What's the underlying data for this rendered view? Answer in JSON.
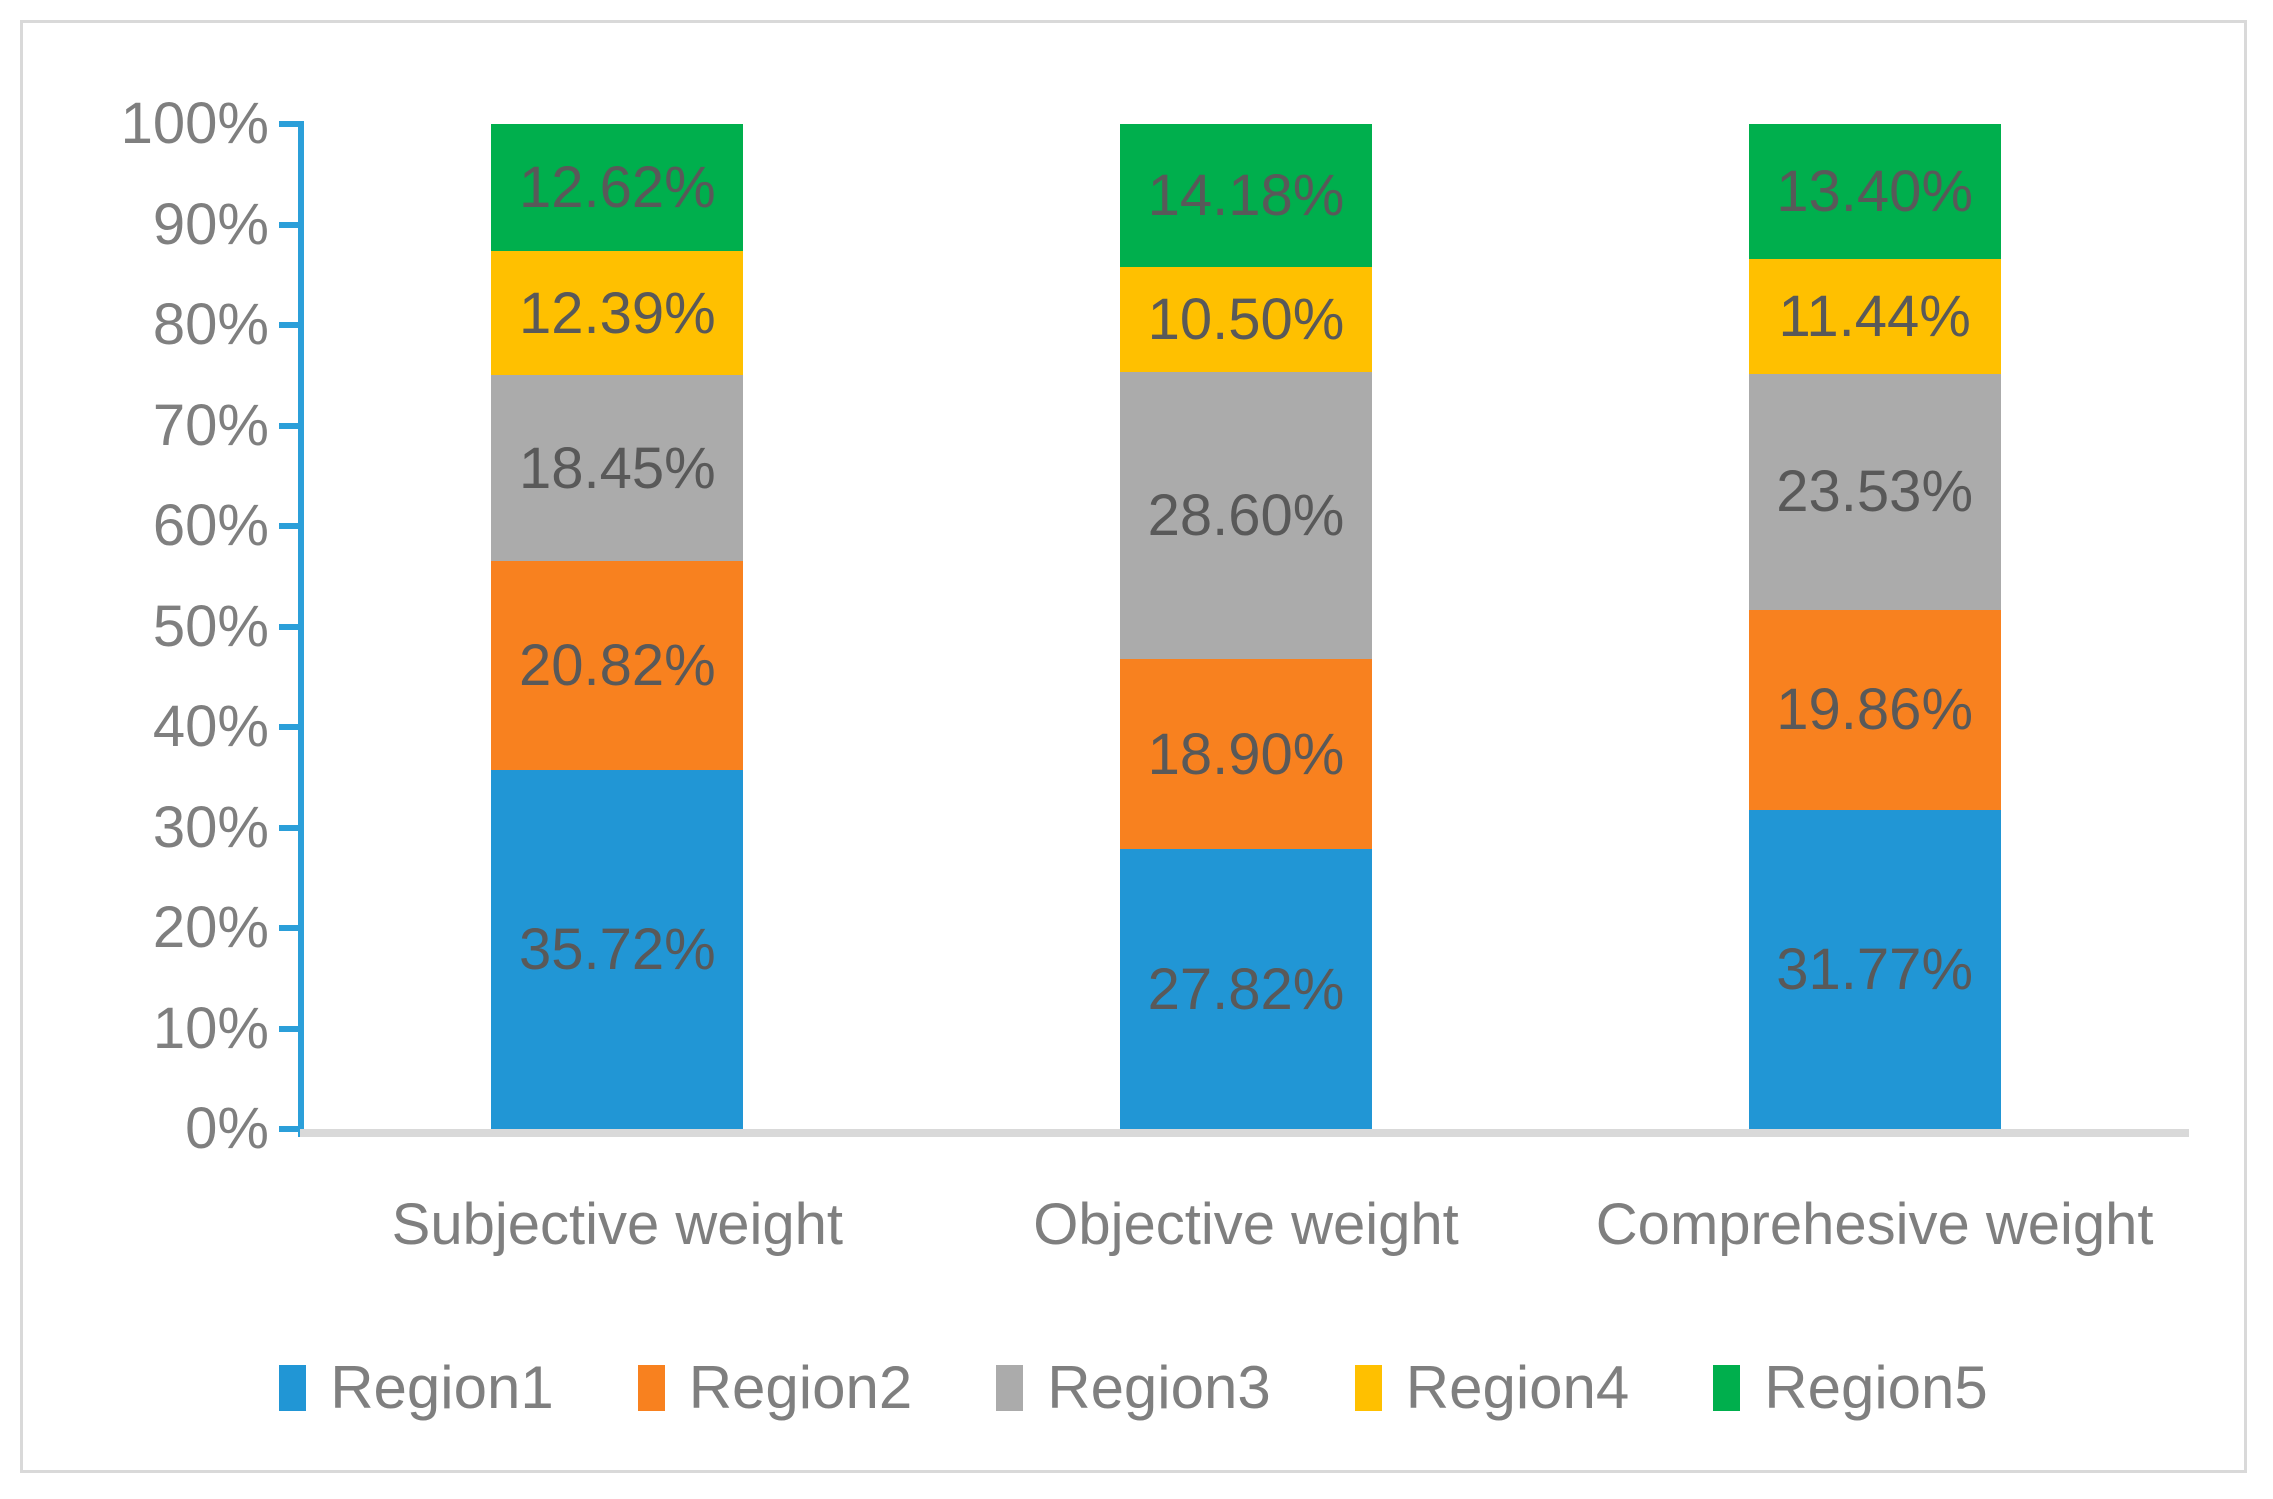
{
  "chart_data": {
    "type": "bar",
    "subtype": "stacked-100-percent-column",
    "title": "",
    "categories": [
      "Subjective weight",
      "Objective weight",
      "Comprehesive weight"
    ],
    "series": [
      {
        "name": "Region1",
        "color": "#2196D5",
        "values": [
          35.72,
          27.82,
          31.77
        ]
      },
      {
        "name": "Region2",
        "color": "#F8811F",
        "values": [
          20.82,
          18.9,
          19.86
        ]
      },
      {
        "name": "Region3",
        "color": "#ABABAB",
        "values": [
          18.45,
          28.6,
          23.53
        ]
      },
      {
        "name": "Region4",
        "color": "#FFC000",
        "values": [
          12.39,
          10.5,
          11.44
        ]
      },
      {
        "name": "Region5",
        "color": "#00AF4D",
        "values": [
          12.62,
          14.18,
          13.4
        ]
      }
    ],
    "data_label_format": "0.00%",
    "data_labels": [
      [
        "35.72%",
        "27.82%",
        "31.77%"
      ],
      [
        "20.82%",
        "18.90%",
        "19.86%"
      ],
      [
        "18.45%",
        "28.60%",
        "23.53%"
      ],
      [
        "12.39%",
        "10.50%",
        "11.44%"
      ],
      [
        "12.62%",
        "14.18%",
        "13.40%"
      ]
    ],
    "xlabel": "",
    "ylabel": "",
    "y_axis": {
      "min": 0,
      "max": 100,
      "tick_step": 10,
      "tick_labels": [
        "0%",
        "10%",
        "20%",
        "30%",
        "40%",
        "50%",
        "60%",
        "70%",
        "80%",
        "90%",
        "100%"
      ]
    },
    "gridlines": false,
    "legend_position": "bottom"
  },
  "colors": {
    "axis_line": "#2B9FD9",
    "baseline": "#D9D9D9",
    "frame_border": "#D9D9D9",
    "tick_text": "#7F7F7F",
    "data_label_text": "#595959"
  }
}
